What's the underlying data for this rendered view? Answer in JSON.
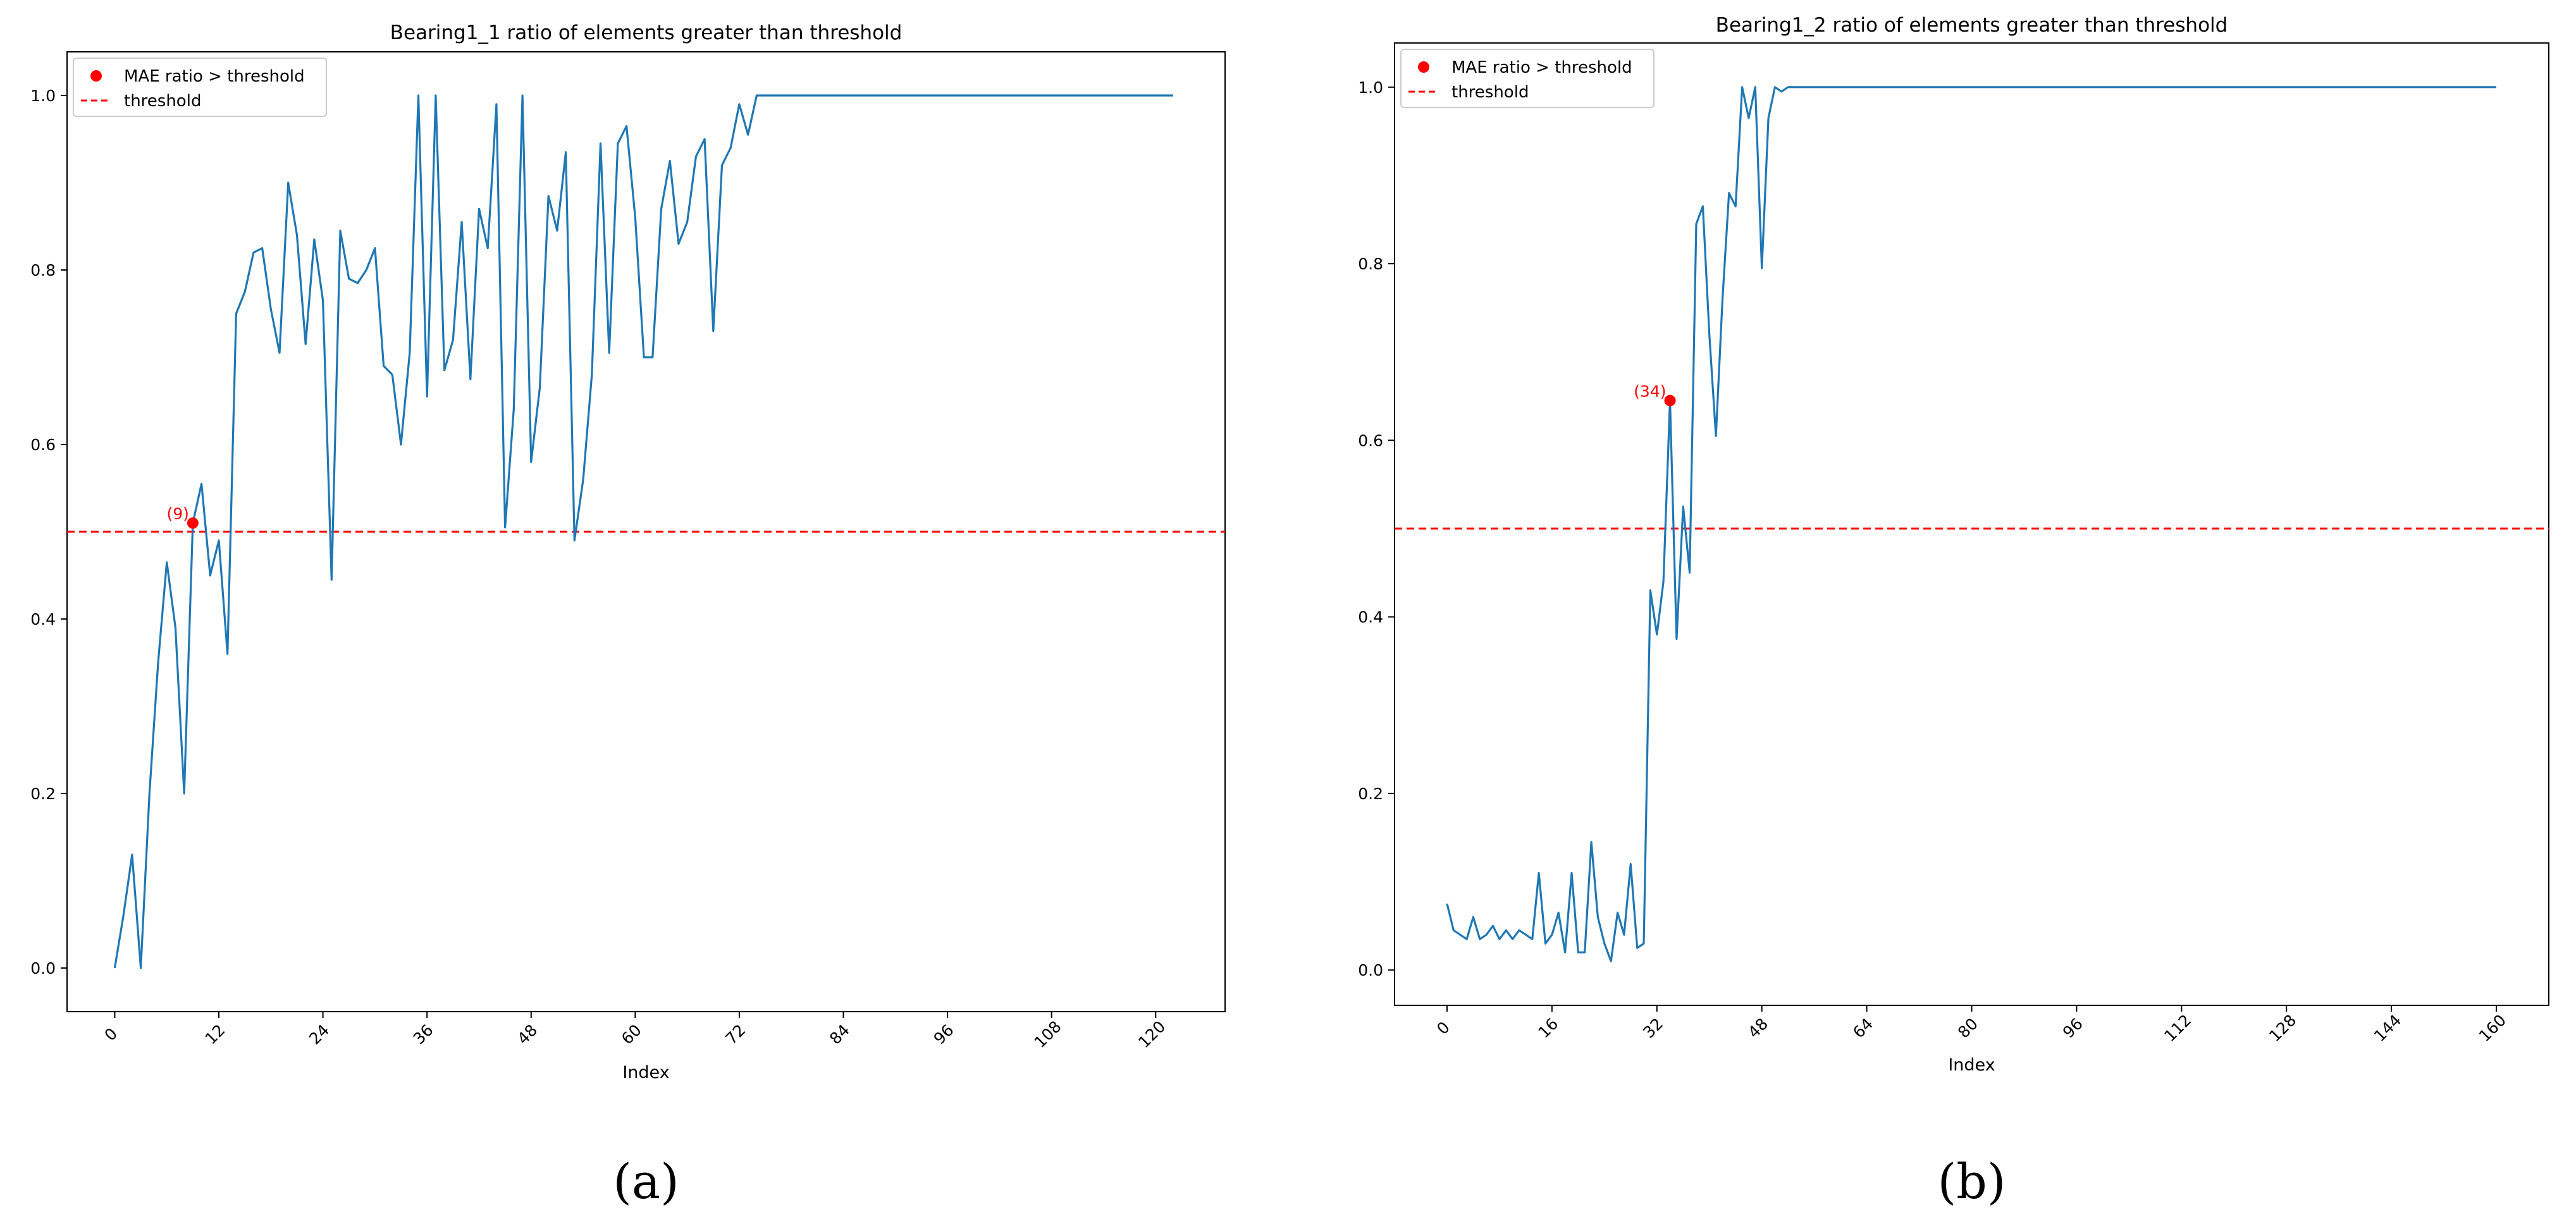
{
  "colors": {
    "line": "#1f77b4",
    "threshold": "#ff0000",
    "marker": "#ff0000",
    "axes": "#000000"
  },
  "chart_data": [
    {
      "type": "line",
      "panel_label": "(a)",
      "title": "Bearing1_1 ratio of elements greater than threshold",
      "xlabel": "Index",
      "ylabel": "",
      "xlim": [
        -5.5,
        128
      ],
      "ylim": [
        -0.05,
        1.05
      ],
      "xticks": [
        0,
        12,
        24,
        36,
        48,
        60,
        72,
        84,
        96,
        108,
        120
      ],
      "yticks": [
        0.0,
        0.2,
        0.4,
        0.6,
        0.8,
        1.0
      ],
      "ytick_labels": [
        "0.0",
        "0.2",
        "0.4",
        "0.6",
        "0.8",
        "1.0"
      ],
      "grid": false,
      "legend": {
        "position": "top-left",
        "entries": [
          "MAE ratio > threshold",
          "threshold"
        ]
      },
      "threshold": 0.5,
      "series": [
        {
          "x": [
            0,
            1,
            2,
            3,
            4,
            5,
            6,
            7,
            8,
            9,
            10,
            11,
            12,
            13,
            14,
            15,
            16,
            17,
            18,
            19,
            20,
            21,
            22,
            23,
            24,
            25,
            26,
            27,
            28,
            29,
            30,
            31,
            32,
            33,
            34,
            35,
            36,
            37,
            38,
            39,
            40,
            41,
            42,
            43,
            44,
            45,
            46,
            47,
            48,
            49,
            50,
            51,
            52,
            53,
            54,
            55,
            56,
            57,
            58,
            59,
            60,
            61,
            62,
            63,
            64,
            65,
            66,
            67,
            68,
            69,
            70,
            71,
            72,
            73,
            74,
            75,
            76,
            77,
            78,
            79,
            80,
            81,
            82,
            83,
            84,
            85,
            86,
            87,
            88,
            89,
            90,
            91,
            92,
            93,
            94,
            95,
            96,
            97,
            98,
            99,
            100,
            101,
            102,
            103,
            104,
            105,
            106,
            107,
            108,
            109,
            110,
            111,
            112,
            113,
            114,
            115,
            116,
            117,
            118,
            119,
            120,
            121,
            122
          ],
          "values": [
            0.0,
            0.06,
            0.13,
            0.0,
            0.2,
            0.35,
            0.465,
            0.39,
            0.2,
            0.51,
            0.555,
            0.45,
            0.49,
            0.36,
            0.75,
            0.775,
            0.82,
            0.825,
            0.755,
            0.705,
            0.9,
            0.84,
            0.715,
            0.835,
            0.765,
            0.445,
            0.845,
            0.79,
            0.785,
            0.8,
            0.825,
            0.69,
            0.68,
            0.6,
            0.705,
            1.0,
            0.655,
            1.0,
            0.685,
            0.72,
            0.855,
            0.675,
            0.87,
            0.825,
            0.99,
            0.505,
            0.64,
            1.0,
            0.58,
            0.665,
            0.885,
            0.845,
            0.935,
            0.49,
            0.56,
            0.68,
            0.945,
            0.705,
            0.945,
            0.965,
            0.86,
            0.7,
            0.7,
            0.87,
            0.925,
            0.83,
            0.855,
            0.93,
            0.95,
            0.73,
            0.92,
            0.94,
            0.99,
            0.955,
            1.0,
            1.0,
            1.0,
            1.0,
            1.0,
            1.0,
            1.0,
            1.0,
            1.0,
            1.0,
            1.0,
            1.0,
            1.0,
            1.0,
            1.0,
            1.0,
            1.0,
            1.0,
            1.0,
            1.0,
            1.0,
            1.0,
            1.0,
            1.0,
            1.0,
            1.0,
            1.0,
            1.0,
            1.0,
            1.0,
            1.0,
            1.0,
            1.0,
            1.0,
            1.0,
            1.0,
            1.0,
            1.0,
            1.0,
            1.0,
            1.0,
            1.0,
            1.0,
            1.0,
            1.0,
            1.0,
            1.0,
            1.0,
            1.0
          ]
        }
      ],
      "marker_point": {
        "x": 9,
        "y": 0.51,
        "label": "(9)"
      }
    },
    {
      "type": "line",
      "panel_label": "(b)",
      "title": "Bearing1_2 ratio of elements greater than threshold",
      "xlabel": "Index",
      "ylabel": "",
      "xlim": [
        -8,
        168
      ],
      "ylim": [
        -0.04,
        1.05
      ],
      "xticks": [
        0,
        16,
        32,
        48,
        64,
        80,
        96,
        112,
        128,
        144,
        160
      ],
      "yticks": [
        0.0,
        0.2,
        0.4,
        0.6,
        0.8,
        1.0
      ],
      "ytick_labels": [
        "0.0",
        "0.2",
        "0.4",
        "0.6",
        "0.8",
        "1.0"
      ],
      "grid": false,
      "legend": {
        "position": "top-left",
        "entries": [
          "MAE ratio > threshold",
          "threshold"
        ]
      },
      "threshold": 0.5,
      "series": [
        {
          "x": [
            0,
            1,
            2,
            3,
            4,
            5,
            6,
            7,
            8,
            9,
            10,
            11,
            12,
            13,
            14,
            15,
            16,
            17,
            18,
            19,
            20,
            21,
            22,
            23,
            24,
            25,
            26,
            27,
            28,
            29,
            30,
            31,
            32,
            33,
            34,
            35,
            36,
            37,
            38,
            39,
            40,
            41,
            42,
            43,
            44,
            45,
            46,
            47,
            48,
            49,
            50,
            51,
            52,
            160
          ],
          "values": [
            0.075,
            0.045,
            0.04,
            0.035,
            0.06,
            0.035,
            0.04,
            0.05,
            0.035,
            0.045,
            0.035,
            0.045,
            0.04,
            0.035,
            0.11,
            0.03,
            0.04,
            0.065,
            0.02,
            0.11,
            0.02,
            0.02,
            0.145,
            0.06,
            0.03,
            0.01,
            0.065,
            0.04,
            0.12,
            0.025,
            0.03,
            0.43,
            0.38,
            0.44,
            0.645,
            0.375,
            0.525,
            0.45,
            0.845,
            0.865,
            0.72,
            0.605,
            0.76,
            0.88,
            0.865,
            1.0,
            0.965,
            1.0,
            0.795,
            0.965,
            1.0,
            0.995,
            1.0,
            1.0
          ]
        }
      ],
      "marker_point": {
        "x": 34,
        "y": 0.645,
        "label": "(34)"
      }
    }
  ]
}
